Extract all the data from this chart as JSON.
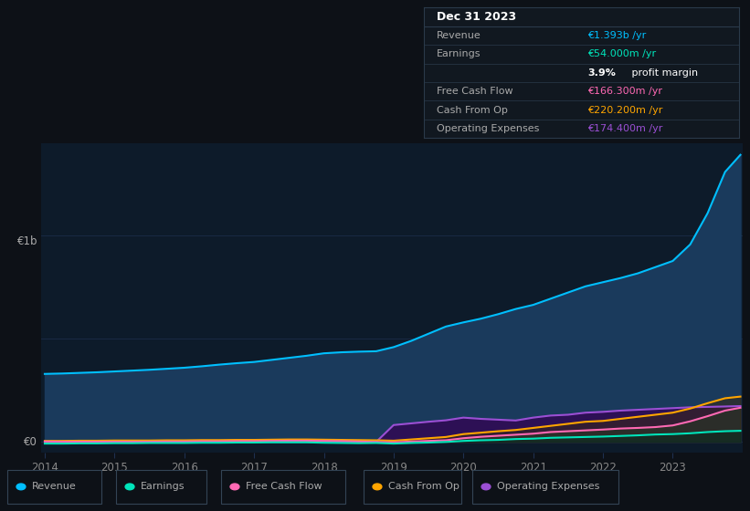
{
  "bg_color": "#0d1117",
  "plot_bg_color": "#0d1b2a",
  "fig_width": 8.21,
  "fig_height": 5.6,
  "dpi": 100,
  "years": [
    2014,
    2014.25,
    2014.5,
    2014.75,
    2015,
    2015.25,
    2015.5,
    2015.75,
    2016,
    2016.25,
    2016.5,
    2016.75,
    2017,
    2017.25,
    2017.5,
    2017.75,
    2018,
    2018.25,
    2018.5,
    2018.75,
    2019,
    2019.25,
    2019.5,
    2019.75,
    2020,
    2020.25,
    2020.5,
    2020.75,
    2021,
    2021.25,
    2021.5,
    2021.75,
    2022,
    2022.25,
    2022.5,
    2022.75,
    2023,
    2023.25,
    2023.5,
    2023.75,
    2023.97
  ],
  "revenue": [
    330,
    332,
    335,
    338,
    342,
    346,
    350,
    355,
    360,
    367,
    375,
    382,
    388,
    398,
    408,
    418,
    430,
    435,
    438,
    440,
    460,
    490,
    525,
    560,
    580,
    598,
    620,
    645,
    665,
    695,
    725,
    755,
    775,
    795,
    818,
    848,
    878,
    958,
    1110,
    1310,
    1393
  ],
  "earnings": [
    -8,
    -8,
    -7,
    -7,
    -6,
    -6,
    -5,
    -5,
    -5,
    -4,
    -4,
    -3,
    -3,
    -2,
    -2,
    -2,
    -4,
    -5,
    -6,
    -5,
    -8,
    -5,
    -3,
    0,
    5,
    8,
    10,
    14,
    16,
    20,
    22,
    24,
    26,
    29,
    32,
    36,
    38,
    42,
    48,
    52,
    54
  ],
  "free_cash_flow": [
    2,
    1,
    1,
    1,
    1,
    1,
    1,
    2,
    2,
    3,
    3,
    4,
    4,
    5,
    6,
    6,
    5,
    4,
    2,
    0,
    -2,
    2,
    5,
    8,
    18,
    25,
    30,
    35,
    40,
    48,
    52,
    56,
    60,
    65,
    68,
    72,
    80,
    100,
    125,
    152,
    166
  ],
  "cash_from_op": [
    5,
    5,
    6,
    6,
    7,
    7,
    7,
    8,
    8,
    9,
    9,
    10,
    10,
    11,
    12,
    12,
    11,
    10,
    9,
    8,
    6,
    12,
    18,
    24,
    38,
    45,
    52,
    58,
    68,
    78,
    88,
    98,
    102,
    112,
    122,
    132,
    142,
    162,
    188,
    212,
    220
  ],
  "op_expenses": [
    0,
    0,
    0,
    0,
    0,
    0,
    0,
    0,
    0,
    0,
    0,
    0,
    0,
    0,
    0,
    0,
    0,
    0,
    0,
    0,
    82,
    90,
    98,
    105,
    118,
    112,
    108,
    104,
    118,
    128,
    132,
    142,
    146,
    152,
    156,
    160,
    164,
    168,
    170,
    172,
    174
  ],
  "revenue_color": "#00bfff",
  "earnings_color": "#00e5bb",
  "free_cash_flow_color": "#ff69b4",
  "cash_from_op_color": "#ffa500",
  "op_expenses_color": "#9b4fd4",
  "revenue_fill_color": "#1a3a5c",
  "op_expenses_fill_color": "#2d1055",
  "ylim_min": -50,
  "ylim_max": 1450,
  "xlabel_years": [
    2014,
    2015,
    2016,
    2017,
    2018,
    2019,
    2020,
    2021,
    2022,
    2023
  ],
  "info_box": {
    "title": "Dec 31 2023",
    "bg": "#111820",
    "border": "#2a3a4a",
    "rows": [
      {
        "label": "Revenue",
        "value": "€1.393b /yr",
        "val_color": "#00bfff"
      },
      {
        "label": "Earnings",
        "value": "€54.000m /yr",
        "val_color": "#00e5bb"
      },
      {
        "label": "",
        "value": "3.9% profit margin",
        "val_color": "#cccccc",
        "bold_prefix": "3.9%"
      },
      {
        "label": "Free Cash Flow",
        "value": "€166.300m /yr",
        "val_color": "#ff69b4"
      },
      {
        "label": "Cash From Op",
        "value": "€220.200m /yr",
        "val_color": "#ffa500"
      },
      {
        "label": "Operating Expenses",
        "value": "€174.400m /yr",
        "val_color": "#9b4fd4"
      }
    ]
  },
  "legend_items": [
    {
      "label": "Revenue",
      "color": "#00bfff"
    },
    {
      "label": "Earnings",
      "color": "#00e5bb"
    },
    {
      "label": "Free Cash Flow",
      "color": "#ff69b4"
    },
    {
      "label": "Cash From Op",
      "color": "#ffa500"
    },
    {
      "label": "Operating Expenses",
      "color": "#9b4fd4"
    }
  ],
  "grid_color": "#1e3050",
  "tick_color": "#888888",
  "label_color": "#aaaaaa"
}
